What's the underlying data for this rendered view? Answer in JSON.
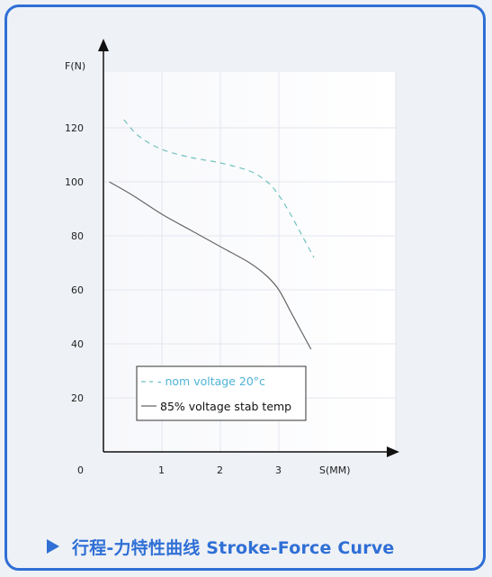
{
  "caption": "行程-力特性曲线 Stroke-Force Curve",
  "chart_data": {
    "type": "line",
    "title": "",
    "xlabel": "S(MM)",
    "ylabel": "F(N)",
    "xlim": [
      0,
      4
    ],
    "ylim": [
      0,
      140
    ],
    "x_ticks": [
      "0",
      "1",
      "2",
      "3"
    ],
    "y_ticks": [
      "20",
      "40",
      "60",
      "80",
      "100",
      "120"
    ],
    "grid": true,
    "legend_position": "bottom-left",
    "series": [
      {
        "name": "- nom  voltage 20°c",
        "style": "dashed",
        "color": "#6fc2bd",
        "x": [
          0.35,
          0.6,
          1.0,
          1.5,
          2.0,
          2.5,
          2.8,
          3.0,
          3.2,
          3.4,
          3.6
        ],
        "y": [
          123,
          117,
          112,
          109,
          107,
          104,
          100,
          95,
          88,
          80,
          72
        ]
      },
      {
        "name": "85%  voltage stab temp",
        "style": "solid",
        "color": "#666666",
        "x": [
          0.1,
          0.5,
          1.0,
          1.5,
          2.0,
          2.5,
          2.8,
          3.0,
          3.2,
          3.4,
          3.55
        ],
        "y": [
          100,
          95,
          88,
          82,
          76,
          70,
          65,
          60,
          52,
          44,
          38
        ]
      }
    ]
  }
}
